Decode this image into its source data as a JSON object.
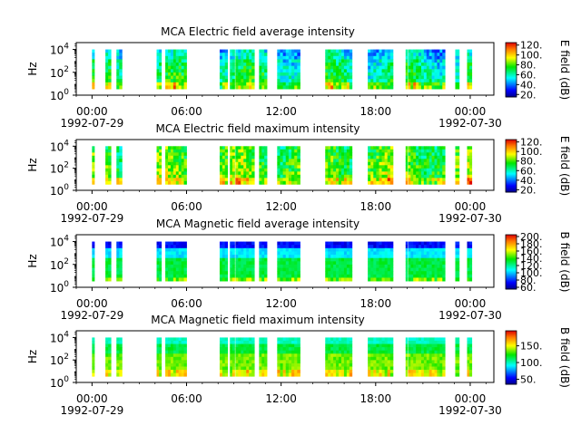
{
  "chart_data": [
    {
      "type": "heatmap",
      "title": "MCA  Electric field average intensity",
      "ylabel": "Hz",
      "colorbar_label": "E field (dB)",
      "colorbar_range": [
        15,
        125
      ],
      "colorbar_ticks": [
        20,
        40,
        60,
        80,
        100,
        120
      ],
      "colorbar_tick_labels": [
        "20.",
        "40.",
        "60.",
        "80.",
        "100.",
        "120."
      ],
      "profile": "e-avg"
    },
    {
      "type": "heatmap",
      "title": "MCA  Electric field maximum intensity",
      "ylabel": "Hz",
      "colorbar_label": "E field (dB)",
      "colorbar_range": [
        15,
        125
      ],
      "colorbar_ticks": [
        20,
        40,
        60,
        80,
        100,
        120
      ],
      "colorbar_tick_labels": [
        "20.",
        "40.",
        "60.",
        "80.",
        "100.",
        "120."
      ],
      "profile": "e-max"
    },
    {
      "type": "heatmap",
      "title": "MCA  Magnetic field average intensity",
      "ylabel": "Hz",
      "colorbar_label": "B field (dB)",
      "colorbar_range": [
        55,
        205
      ],
      "colorbar_ticks": [
        60,
        80,
        100,
        120,
        140,
        160,
        180,
        200
      ],
      "colorbar_tick_labels": [
        "60.",
        "80.",
        "100.",
        "120.",
        "140.",
        "160.",
        "180.",
        "200."
      ],
      "profile": "b-avg"
    },
    {
      "type": "heatmap",
      "title": "MCA  Magnetic field maximum intensity",
      "ylabel": "Hz",
      "colorbar_label": "B field (dB)",
      "colorbar_range": [
        35,
        195
      ],
      "colorbar_ticks": [
        50,
        100,
        150
      ],
      "colorbar_tick_labels": [
        "50.",
        "100.",
        "150."
      ],
      "profile": "b-max"
    }
  ],
  "x_axis": {
    "range_hours": [
      -1,
      25.5
    ],
    "major_ticks_hours": [
      0,
      6,
      12,
      18,
      24
    ],
    "tick_labels": [
      "00:00",
      "06:00",
      "12:00",
      "18:00",
      "00:00"
    ],
    "date_labels": [
      {
        "hour": 0,
        "text": "1992-07-29"
      },
      {
        "hour": 24,
        "text": "1992-07-30"
      }
    ]
  },
  "y_axis": {
    "scale": "log",
    "range_log10": [
      0,
      4.6
    ],
    "ticks_log10": [
      0,
      2,
      4
    ],
    "tick_labels": [
      {
        "base": "10",
        "exp": "0"
      },
      {
        "base": "10",
        "exp": "2"
      },
      {
        "base": "10",
        "exp": "4"
      }
    ]
  },
  "data_intervals_hours": [
    [
      0.0,
      0.15
    ],
    [
      0.85,
      1.2
    ],
    [
      1.55,
      1.9
    ],
    [
      4.1,
      4.4
    ],
    [
      4.65,
      6.0
    ],
    [
      8.1,
      8.6
    ],
    [
      8.75,
      9.05
    ],
    [
      9.1,
      10.3
    ],
    [
      10.6,
      11.1
    ],
    [
      11.75,
      13.2
    ],
    [
      14.8,
      16.5
    ],
    [
      17.5,
      19.1
    ],
    [
      19.9,
      20.0
    ],
    [
      20.05,
      22.4
    ],
    [
      23.05,
      23.3
    ],
    [
      23.8,
      24.1
    ]
  ]
}
